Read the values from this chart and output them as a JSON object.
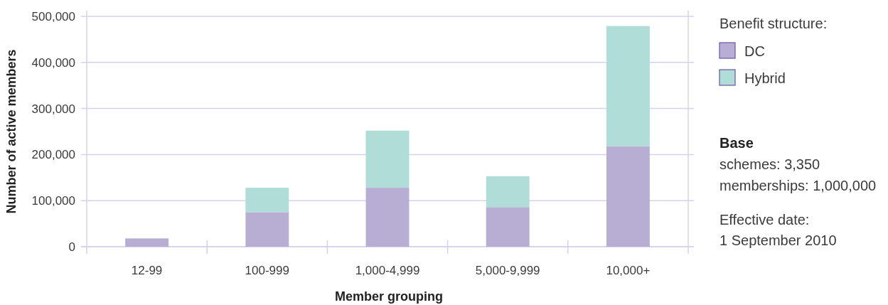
{
  "chart_data": {
    "type": "bar",
    "stacked": true,
    "xlabel": "Member grouping",
    "ylabel": "Number of active members",
    "legend_title": "Benefit structure:",
    "categories": [
      "12-99",
      "100-999",
      "1,000-4,999",
      "5,000-9,999",
      "10,000+"
    ],
    "series": [
      {
        "name": "DC",
        "color": "#b8aed4",
        "values": [
          18000,
          75000,
          128000,
          86000,
          218000
        ]
      },
      {
        "name": "Hybrid",
        "color": "#b0ddd7",
        "values": [
          null,
          53000,
          124000,
          67000,
          261000
        ]
      }
    ],
    "ylim": [
      0,
      500000
    ],
    "yticks": [
      0,
      {
        "value": 100000,
        "label": "100,000"
      },
      {
        "value": 200000,
        "label": "200,000"
      },
      {
        "value": 300000,
        "label": "300,000"
      },
      {
        "value": 400000,
        "label": "400,000"
      },
      {
        "value": 500000,
        "label": "500,000"
      }
    ],
    "grid": "y",
    "legend": "right",
    "annotations": [
      "Base",
      "schemes: 3,350\nmemberships: 1,000,000",
      "Effective date:\n1 September 2010"
    ]
  }
}
